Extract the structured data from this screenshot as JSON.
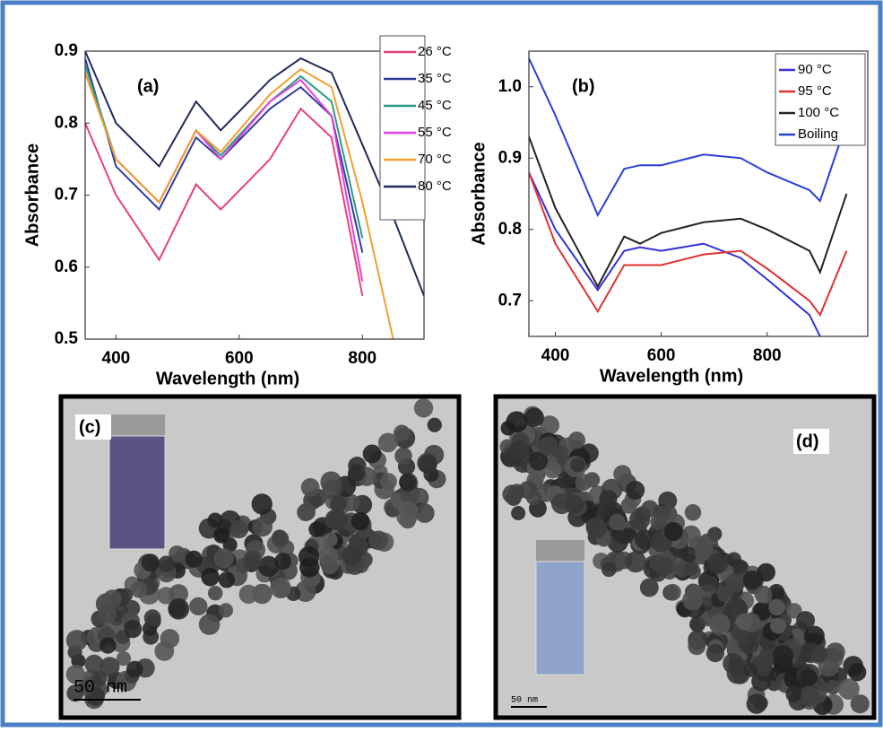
{
  "chart_data": [
    {
      "type": "line",
      "annotation": "(a)",
      "xlabel": "Wavelength (nm)",
      "ylabel": "Absorbance",
      "x": [
        350,
        400,
        470,
        530,
        570,
        650,
        700,
        750,
        800,
        850,
        900
      ],
      "xlim": [
        350,
        900
      ],
      "ylim": [
        0.5,
        0.9
      ],
      "xticks": [
        400,
        600,
        800
      ],
      "yticks": [
        0.5,
        0.6,
        0.7,
        0.8,
        0.9
      ],
      "legend": "upper right",
      "series": [
        {
          "name": "26 °C",
          "color": "#e8407a",
          "values": [
            0.8,
            0.7,
            0.61,
            0.715,
            0.68,
            0.75,
            0.82,
            0.78,
            0.56,
            null,
            null
          ]
        },
        {
          "name": "35 °C",
          "color": "#2f3b9a",
          "values": [
            0.89,
            0.74,
            0.68,
            0.78,
            0.75,
            0.82,
            0.85,
            0.81,
            0.62,
            null,
            null
          ]
        },
        {
          "name": "45 °C",
          "color": "#2f9a84",
          "values": [
            0.88,
            0.75,
            0.69,
            0.79,
            0.755,
            0.83,
            0.865,
            0.83,
            0.64,
            null,
            null
          ]
        },
        {
          "name": "55 °C",
          "color": "#e040e0",
          "values": [
            0.87,
            0.75,
            0.69,
            0.79,
            0.75,
            0.83,
            0.86,
            0.81,
            0.58,
            null,
            null
          ]
        },
        {
          "name": "70 °C",
          "color": "#f0a030",
          "values": [
            0.87,
            0.75,
            0.69,
            0.79,
            0.76,
            0.84,
            0.875,
            0.85,
            0.69,
            0.5,
            null
          ]
        },
        {
          "name": "80 °C",
          "color": "#1f2a5a",
          "values": [
            0.9,
            0.8,
            0.74,
            0.83,
            0.79,
            0.86,
            0.89,
            0.87,
            0.77,
            0.67,
            0.56
          ]
        }
      ]
    },
    {
      "type": "line",
      "annotation": "(b)",
      "xlabel": "Wavelength (nm)",
      "ylabel": "Absorbance",
      "x": [
        350,
        400,
        480,
        530,
        560,
        600,
        680,
        750,
        800,
        880,
        900,
        950
      ],
      "xlim": [
        350,
        990
      ],
      "ylim": [
        0.65,
        1.05
      ],
      "xticks": [
        400,
        600,
        800
      ],
      "yticks": [
        0.7,
        0.8,
        0.9,
        {
          "value": 1,
          "label": "1.0"
        }
      ],
      "legend": "upper right",
      "series": [
        {
          "name": "90 °C",
          "color": "#3232d8",
          "values": [
            0.88,
            0.8,
            0.715,
            0.77,
            0.775,
            0.77,
            0.78,
            0.76,
            0.73,
            0.68,
            0.65,
            null
          ]
        },
        {
          "name": "95 °C",
          "color": "#e03030",
          "values": [
            0.88,
            0.78,
            0.685,
            0.75,
            0.75,
            0.75,
            0.765,
            0.77,
            0.745,
            0.7,
            0.68,
            0.77
          ]
        },
        {
          "name": "100 °C",
          "color": "#222222",
          "values": [
            0.93,
            0.83,
            0.72,
            0.79,
            0.78,
            0.795,
            0.81,
            0.815,
            0.8,
            0.77,
            0.74,
            0.85
          ]
        },
        {
          "name": "Boiling",
          "color": "#2a3fd6",
          "values": [
            1.04,
            0.96,
            0.82,
            0.885,
            0.89,
            0.89,
            0.905,
            0.9,
            0.88,
            0.855,
            0.84,
            0.95
          ]
        }
      ]
    }
  ],
  "images": [
    {
      "label": "(c)",
      "scale_bar": "50 nm"
    },
    {
      "label": "(d)",
      "scale_bar": "50 nm"
    }
  ]
}
